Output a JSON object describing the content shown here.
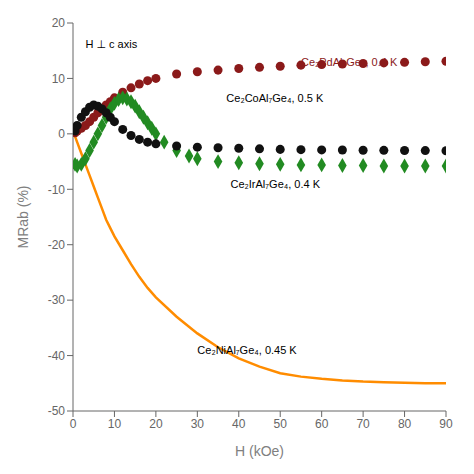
{
  "chart_data": {
    "type": "scatter",
    "x_label": "H (kOe)",
    "y_label": "MRab (%)",
    "xlim": [
      0,
      90
    ],
    "ylim": [
      -50,
      20
    ],
    "xticks": [
      0,
      10,
      20,
      30,
      40,
      50,
      60,
      70,
      80,
      90
    ],
    "yticks": [
      -50,
      -40,
      -30,
      -20,
      -10,
      0,
      10,
      20
    ],
    "grid": false,
    "annotations": [
      {
        "text": "Ce₂PdAl₇Ge₄, 0.4 K",
        "x": 55,
        "y": 13.0,
        "color": "#8B1A1A"
      },
      {
        "text": "Ce₂CoAl₇Ge₄, 0.5 K",
        "x": 37,
        "y": 6.5,
        "color": "#000000"
      },
      {
        "text": "Ce₂IrAl₇Ge₄, 0.4 K",
        "x": 38,
        "y": -9.0,
        "color": "#000000"
      },
      {
        "text": "Ce₂NiAl₇Ge₄, 0.45 K",
        "x": 30,
        "y": -39,
        "color": "#000000"
      },
      {
        "text": "H ⊥ c axis",
        "x": 3,
        "y": 17,
        "color": "#000000"
      }
    ],
    "series": [
      {
        "name": "Ce₂PdAl₇Ge₄, 0.4 K",
        "type": "scatter",
        "color": "#8B1A1A",
        "marker": "circle",
        "x": [
          0.5,
          1,
          2,
          3,
          4,
          5,
          6,
          7,
          8,
          9,
          10,
          12,
          14,
          16,
          18,
          20,
          25,
          30,
          35,
          40,
          45,
          50,
          55,
          60,
          65,
          70,
          75,
          80,
          85,
          90
        ],
        "values": [
          0.2,
          0.5,
          1.0,
          1.5,
          2.2,
          3.0,
          3.8,
          4.5,
          5.2,
          5.8,
          6.5,
          7.5,
          8.3,
          9.0,
          9.6,
          10.0,
          10.8,
          11.2,
          11.5,
          11.8,
          12.0,
          12.2,
          12.4,
          12.5,
          12.6,
          12.7,
          12.8,
          12.9,
          13.0,
          13.1
        ]
      },
      {
        "name": "Ce₂CoAl₇Ge₄, 0.5 K",
        "type": "scatter",
        "color": "#228B22",
        "marker": "diamond",
        "x": [
          0.5,
          1,
          2,
          3,
          4,
          5,
          6,
          7,
          8,
          9,
          10,
          11,
          12,
          13,
          14,
          15,
          16,
          17,
          18,
          19,
          20,
          22,
          25,
          28,
          30,
          35,
          40,
          45,
          50,
          55,
          60,
          65,
          70,
          75,
          80,
          85,
          90
        ],
        "values": [
          -5.5,
          -5.8,
          -5.5,
          -4.5,
          -3.0,
          -1.5,
          0.0,
          1.5,
          3.0,
          4.5,
          5.5,
          6.2,
          6.5,
          6.3,
          5.8,
          5.0,
          4.0,
          3.0,
          2.0,
          1.0,
          0.0,
          -1.5,
          -3.0,
          -4.0,
          -4.5,
          -5.0,
          -5.2,
          -5.4,
          -5.5,
          -5.6,
          -5.6,
          -5.7,
          -5.7,
          -5.8,
          -5.8,
          -5.8,
          -5.8
        ]
      },
      {
        "name": "Ce₂IrAl₇Ge₄, 0.4 K",
        "type": "scatter",
        "color": "#111111",
        "marker": "circle",
        "x": [
          0.5,
          1,
          2,
          3,
          4,
          5,
          6,
          7,
          8,
          9,
          10,
          12,
          14,
          16,
          18,
          20,
          25,
          30,
          35,
          40,
          45,
          50,
          55,
          60,
          65,
          70,
          75,
          80,
          85,
          90
        ],
        "values": [
          0.5,
          1.5,
          3.0,
          4.0,
          4.8,
          5.2,
          5.0,
          4.5,
          3.8,
          3.0,
          2.2,
          0.8,
          -0.3,
          -1.0,
          -1.5,
          -1.8,
          -2.2,
          -2.4,
          -2.5,
          -2.6,
          -2.7,
          -2.8,
          -2.85,
          -2.9,
          -2.92,
          -2.95,
          -2.97,
          -3.0,
          -3.02,
          -3.05
        ]
      },
      {
        "name": "Ce₂NiAl₇Ge₄, 0.45 K",
        "type": "line",
        "color": "#FF8C00",
        "line_style": "solid",
        "x": [
          0.0,
          0.5,
          1,
          2,
          3,
          4,
          5,
          6,
          7,
          8,
          9,
          10,
          12,
          14,
          16,
          18,
          20,
          25,
          30,
          35,
          40,
          45,
          50,
          55,
          60,
          65,
          70,
          75,
          80,
          85,
          90
        ],
        "values": [
          0.0,
          -0.5,
          -1.5,
          -3.5,
          -5.5,
          -7.5,
          -9.5,
          -11.5,
          -13.5,
          -15.5,
          -17.0,
          -18.5,
          -21.0,
          -23.5,
          -25.8,
          -27.8,
          -29.5,
          -33.0,
          -36.0,
          -38.5,
          -40.5,
          -42.0,
          -43.2,
          -43.8,
          -44.2,
          -44.5,
          -44.7,
          -44.8,
          -44.9,
          -45.0,
          -45.0
        ]
      }
    ]
  }
}
